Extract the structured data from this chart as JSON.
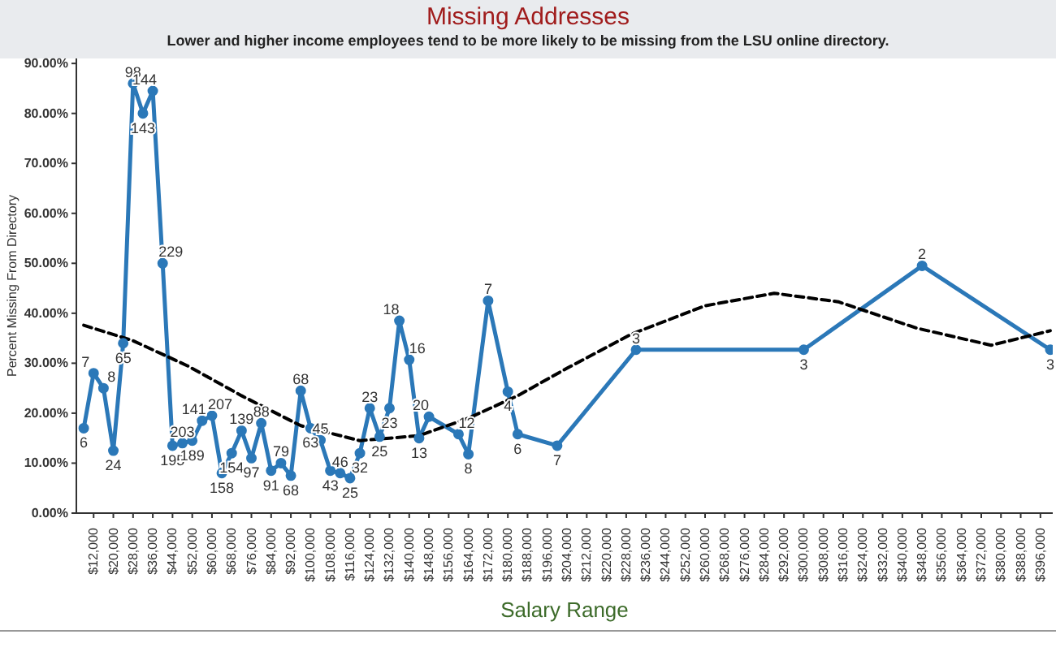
{
  "chart_data": {
    "type": "line",
    "title": "Missing Addresses",
    "subtitle": "Lower and higher income employees tend to be more likely to be missing from the LSU online directory.",
    "xlabel": "Salary Range",
    "ylabel": "Percent Missing From Directory",
    "xlim": [
      5000,
      401000
    ],
    "xticks": [
      {
        "value": 12000,
        "label": "$12,000"
      },
      {
        "value": 20000,
        "label": "$20,000"
      },
      {
        "value": 28000,
        "label": "$28,000"
      },
      {
        "value": 36000,
        "label": "$36,000"
      },
      {
        "value": 44000,
        "label": "$44,000"
      },
      {
        "value": 52000,
        "label": "$52,000"
      },
      {
        "value": 60000,
        "label": "$60,000"
      },
      {
        "value": 68000,
        "label": "$68,000"
      },
      {
        "value": 76000,
        "label": "$76,000"
      },
      {
        "value": 84000,
        "label": "$84,000"
      },
      {
        "value": 92000,
        "label": "$92,000"
      },
      {
        "value": 100000,
        "label": "$100,000"
      },
      {
        "value": 108000,
        "label": "$108,000"
      },
      {
        "value": 116000,
        "label": "$116,000"
      },
      {
        "value": 124000,
        "label": "$124,000"
      },
      {
        "value": 132000,
        "label": "$132,000"
      },
      {
        "value": 140000,
        "label": "$140,000"
      },
      {
        "value": 148000,
        "label": "$148,000"
      },
      {
        "value": 156000,
        "label": "$156,000"
      },
      {
        "value": 164000,
        "label": "$164,000"
      },
      {
        "value": 172000,
        "label": "$172,000"
      },
      {
        "value": 180000,
        "label": "$180,000"
      },
      {
        "value": 188000,
        "label": "$188,000"
      },
      {
        "value": 196000,
        "label": "$196,000"
      },
      {
        "value": 204000,
        "label": "$204,000"
      },
      {
        "value": 212000,
        "label": "$212,000"
      },
      {
        "value": 220000,
        "label": "$220,000"
      },
      {
        "value": 228000,
        "label": "$228,000"
      },
      {
        "value": 236000,
        "label": "$236,000"
      },
      {
        "value": 244000,
        "label": "$244,000"
      },
      {
        "value": 252000,
        "label": "$252,000"
      },
      {
        "value": 260000,
        "label": "$260,000"
      },
      {
        "value": 268000,
        "label": "$268,000"
      },
      {
        "value": 276000,
        "label": "$276,000"
      },
      {
        "value": 284000,
        "label": "$284,000"
      },
      {
        "value": 292000,
        "label": "$292,000"
      },
      {
        "value": 300000,
        "label": "$300,000"
      },
      {
        "value": 308000,
        "label": "$308,000"
      },
      {
        "value": 316000,
        "label": "$316,000"
      },
      {
        "value": 324000,
        "label": "$324,000"
      },
      {
        "value": 332000,
        "label": "$332,000"
      },
      {
        "value": 340000,
        "label": "$340,000"
      },
      {
        "value": 348000,
        "label": "$348,000"
      },
      {
        "value": 356000,
        "label": "$356,000"
      },
      {
        "value": 364000,
        "label": "$364,000"
      },
      {
        "value": 372000,
        "label": "$372,000"
      },
      {
        "value": 380000,
        "label": "$380,000"
      },
      {
        "value": 388000,
        "label": "$388,000"
      },
      {
        "value": 396000,
        "label": "$396,000"
      }
    ],
    "ylim": [
      0,
      91
    ],
    "yticks": [
      {
        "value": 0,
        "label": "0.00%"
      },
      {
        "value": 10,
        "label": "10.00%"
      },
      {
        "value": 20,
        "label": "20.00%"
      },
      {
        "value": 30,
        "label": "30.00%"
      },
      {
        "value": 40,
        "label": "40.00%"
      },
      {
        "value": 50,
        "label": "50.00%"
      },
      {
        "value": 60,
        "label": "60.00%"
      },
      {
        "value": 70,
        "label": "70.00%"
      },
      {
        "value": 80,
        "label": "80.00%"
      },
      {
        "value": 90,
        "label": "90.00%"
      }
    ],
    "grid": false,
    "legend": false,
    "annotations": [
      {
        "text": "6",
        "x": 8000,
        "y": 17
      },
      {
        "text": "7",
        "x": 12000,
        "y": 28
      },
      {
        "text": "8",
        "x": 16000,
        "y": 25
      },
      {
        "text": "24",
        "x": 20000,
        "y": 12.5
      },
      {
        "text": "65",
        "x": 24000,
        "y": 34
      },
      {
        "text": "98",
        "x": 28000,
        "y": 86
      },
      {
        "text": "143",
        "x": 32000,
        "y": 80
      },
      {
        "text": "144",
        "x": 36000,
        "y": 84.5
      },
      {
        "text": "229",
        "x": 40000,
        "y": 50
      },
      {
        "text": "195",
        "x": 44000,
        "y": 13.5
      },
      {
        "text": "203",
        "x": 48000,
        "y": 14
      },
      {
        "text": "189",
        "x": 52000,
        "y": 14.5
      },
      {
        "text": "141",
        "x": 56000,
        "y": 18.5
      },
      {
        "text": "207",
        "x": 60000,
        "y": 19.5
      },
      {
        "text": "158",
        "x": 64000,
        "y": 8
      },
      {
        "text": "154",
        "x": 68000,
        "y": 12
      },
      {
        "text": "139",
        "x": 72000,
        "y": 16.5
      },
      {
        "text": "97",
        "x": 76000,
        "y": 11
      },
      {
        "text": "88",
        "x": 80000,
        "y": 18
      },
      {
        "text": "91",
        "x": 84000,
        "y": 8.5
      },
      {
        "text": "79",
        "x": 88000,
        "y": 10
      },
      {
        "text": "68",
        "x": 92000,
        "y": 7.5
      },
      {
        "text": "68",
        "x": 96000,
        "y": 24.5
      },
      {
        "text": "63",
        "x": 100000,
        "y": 17
      },
      {
        "text": "45",
        "x": 104000,
        "y": 14.6
      },
      {
        "text": "43",
        "x": 108000,
        "y": 8.5
      },
      {
        "text": "46",
        "x": 112000,
        "y": 8
      },
      {
        "text": "25",
        "x": 116000,
        "y": 7
      },
      {
        "text": "32",
        "x": 120000,
        "y": 12
      },
      {
        "text": "23",
        "x": 124000,
        "y": 21
      },
      {
        "text": "25",
        "x": 128000,
        "y": 15.3
      },
      {
        "text": "23",
        "x": 132000,
        "y": 21
      },
      {
        "text": "18",
        "x": 136000,
        "y": 38.5
      },
      {
        "text": "16",
        "x": 140000,
        "y": 30.7
      },
      {
        "text": "13",
        "x": 144000,
        "y": 15
      },
      {
        "text": "20",
        "x": 148000,
        "y": 19.3
      },
      {
        "text": "12",
        "x": 160000,
        "y": 15.8
      },
      {
        "text": "8",
        "x": 164000,
        "y": 11.8
      },
      {
        "text": "7",
        "x": 172000,
        "y": 42.5
      },
      {
        "text": "4",
        "x": 180000,
        "y": 24.3
      },
      {
        "text": "6",
        "x": 184000,
        "y": 15.8
      },
      {
        "text": "7",
        "x": 200000,
        "y": 13.5
      },
      {
        "text": "3",
        "x": 232000,
        "y": 32.7
      },
      {
        "text": "3",
        "x": 300000,
        "y": 32.7
      },
      {
        "text": "2",
        "x": 348000,
        "y": 49.5
      },
      {
        "text": "3",
        "x": 400000,
        "y": 32.7
      }
    ],
    "series": [
      {
        "type": "line",
        "color": "#2b78b8",
        "marker": "circle",
        "line_style": "solid",
        "x": [
          8000,
          12000,
          16000,
          20000,
          24000,
          28000,
          32000,
          36000,
          40000,
          44000,
          48000,
          52000,
          56000,
          60000,
          64000,
          68000,
          72000,
          76000,
          80000,
          84000,
          88000,
          92000,
          96000,
          100000,
          104000,
          108000,
          112000,
          116000,
          120000,
          124000,
          128000,
          132000,
          136000,
          140000,
          144000,
          148000,
          160000,
          164000,
          172000,
          180000,
          184000,
          200000,
          232000,
          300000,
          348000,
          400000
        ],
        "values": [
          17,
          28,
          25,
          12.5,
          34,
          86,
          80,
          84.5,
          50,
          13.5,
          14,
          14.5,
          18.5,
          19.5,
          8,
          12,
          16.5,
          11,
          18,
          8.5,
          10,
          7.5,
          24.5,
          17,
          14.6,
          8.5,
          8,
          7,
          12,
          21,
          15.3,
          21,
          38.5,
          30.7,
          15,
          19.3,
          15.8,
          11.8,
          42.5,
          24.3,
          15.8,
          13.5,
          32.7,
          32.7,
          49.5,
          32.7
        ]
      },
      {
        "type": "line",
        "color": "#000000",
        "marker": "none",
        "line_style": "dashed",
        "x": [
          8000,
          28000,
          50000,
          72000,
          96000,
          120000,
          144000,
          164000,
          184000,
          204000,
          230000,
          260000,
          288000,
          314000,
          346000,
          376000,
          400000
        ],
        "values": [
          37.6,
          34.5,
          29.5,
          23.5,
          17.5,
          14.5,
          15.5,
          19,
          23.5,
          29,
          35.8,
          41.5,
          44,
          42.3,
          37,
          33.6,
          36.5
        ]
      }
    ]
  }
}
